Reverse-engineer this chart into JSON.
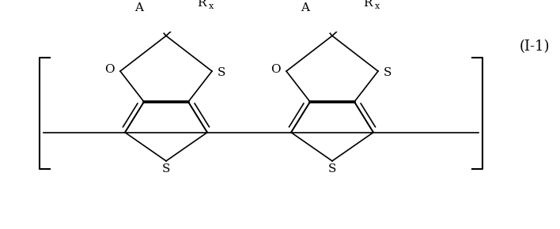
{
  "fig_width": 7.08,
  "fig_height": 2.9,
  "dpi": 100,
  "background": "#ffffff",
  "label_I1": "(I-1)",
  "label_A": "A",
  "label_Rx": "R",
  "label_x": "x",
  "label_O": "O",
  "label_S_top": "S",
  "label_S_bot": "S",
  "line_color": "#000000",
  "font_size_main": 11,
  "font_size_label": 13
}
